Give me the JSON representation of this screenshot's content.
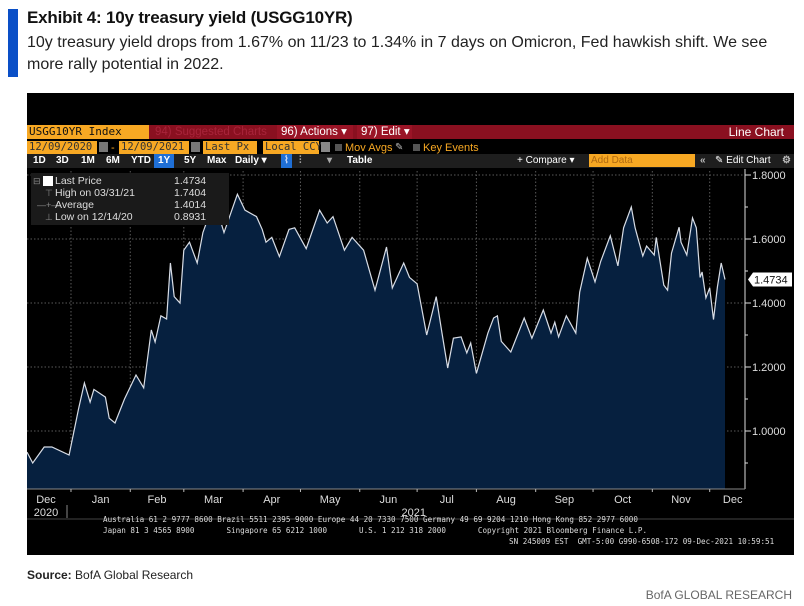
{
  "header": {
    "title": "Exhibit 4: 10y treasury yield (USGG10YR)",
    "subtitle": "10y treasury yield drops from 1.67% on 11/23 to 1.34% in 7 days on Omicron, Fed hawkish shift. We see more rally potential in 2022."
  },
  "terminal": {
    "toolbar1": {
      "ticker": "USGG10YR Index",
      "suggested": "94) Suggested Charts",
      "actions": "96) Actions ▾",
      "edit": "97) Edit ▾",
      "chart_type": "Line Chart"
    },
    "toolbar2": {
      "start_date": "12/09/2020",
      "separator": "-",
      "end_date": "12/09/2021",
      "field": "Last Px",
      "currency": "Local CCY",
      "mov_avgs": "Mov Avgs",
      "key_events": "Key Events"
    },
    "toolbar3": {
      "periods": [
        "1D",
        "3D",
        "1M",
        "6M",
        "YTD",
        "1Y",
        "5Y",
        "Max"
      ],
      "active_period": "1Y",
      "frequency": "Daily ▾",
      "table": "Table",
      "compare": "+ Compare ▾",
      "add_data_placeholder": "Add Data",
      "collapse": "«",
      "edit_chart": "✎ Edit Chart",
      "settings_icon": "⚙"
    },
    "legend": [
      {
        "name": "Last Price",
        "value": "1.4734",
        "symbol": "swatch"
      },
      {
        "name": "High on 03/31/21",
        "value": "1.7404",
        "symbol": "⊤"
      },
      {
        "name": "Average",
        "value": "1.4014",
        "symbol": "—+—"
      },
      {
        "name": "Low on 12/14/20",
        "value": "0.8931",
        "symbol": "⊥"
      }
    ],
    "footer": {
      "line1": "Australia 61 2 9777 8600 Brazil 5511 2395 9000 Europe 44 20 7330 7500 Germany 49 69 9204 1210 Hong Kong 852 2977 6000",
      "line2": "Japan 81 3 4565 8900       Singapore 65 6212 1000       U.S. 1 212 318 2000       Copyright 2021 Bloomberg Finance L.P.",
      "line3": "SN 245009 EST  GMT-5:00 G990-6508-172 09-Dec-2021 10:59:51"
    },
    "colors": {
      "area_fill": "#06203f",
      "line": "#d8dde6",
      "toolbar_red": "#8a1020",
      "toolbar_orange": "#f7a823",
      "active_blue": "#1f6fd6"
    }
  },
  "chart_data": {
    "type": "area",
    "title": "USGG10YR Index",
    "xlabel": "",
    "ylabel": "",
    "ylim": [
      0.8,
      1.85
    ],
    "yticks": [
      1.0,
      1.2,
      1.4,
      1.6,
      1.8
    ],
    "ytick_labels": [
      "1.0000",
      "1.2000",
      "1.4000",
      "1.6000",
      "1.8000"
    ],
    "x_start": "2020-12-09",
    "x_end": "2021-12-09",
    "x_months": [
      {
        "label": "Dec",
        "day": 0,
        "year": "2020"
      },
      {
        "label": "Jan",
        "day": 23
      },
      {
        "label": "Feb",
        "day": 54
      },
      {
        "label": "Mar",
        "day": 82
      },
      {
        "label": "Apr",
        "day": 113
      },
      {
        "label": "May",
        "day": 143
      },
      {
        "label": "Jun",
        "day": 174,
        "year": "2021"
      },
      {
        "label": "Jul",
        "day": 204
      },
      {
        "label": "Aug",
        "day": 235
      },
      {
        "label": "Sep",
        "day": 266
      },
      {
        "label": "Oct",
        "day": 296
      },
      {
        "label": "Nov",
        "day": 327
      },
      {
        "label": "Dec",
        "day": 357
      }
    ],
    "last_value_label": "1.4734",
    "grid": true,
    "legend_position": "top-left",
    "series": [
      {
        "name": "Last Price",
        "points": [
          [
            0,
            0.934
          ],
          [
            3,
            0.9
          ],
          [
            9,
            0.95
          ],
          [
            13,
            0.95
          ],
          [
            22,
            0.925
          ],
          [
            27,
            1.07
          ],
          [
            30,
            1.15
          ],
          [
            33,
            1.09
          ],
          [
            35,
            1.13
          ],
          [
            41,
            1.106
          ],
          [
            43,
            1.04
          ],
          [
            46,
            1.025
          ],
          [
            51,
            1.1
          ],
          [
            57,
            1.175
          ],
          [
            61,
            1.135
          ],
          [
            65,
            1.316
          ],
          [
            67,
            1.278
          ],
          [
            70,
            1.36
          ],
          [
            73,
            1.35
          ],
          [
            75,
            1.525
          ],
          [
            77,
            1.42
          ],
          [
            80,
            1.4
          ],
          [
            82,
            1.565
          ],
          [
            85,
            1.59
          ],
          [
            89,
            1.525
          ],
          [
            92,
            1.62
          ],
          [
            98,
            1.72
          ],
          [
            103,
            1.62
          ],
          [
            110,
            1.74
          ],
          [
            114,
            1.69
          ],
          [
            120,
            1.67
          ],
          [
            123,
            1.63
          ],
          [
            125,
            1.59
          ],
          [
            128,
            1.605
          ],
          [
            132,
            1.545
          ],
          [
            137,
            1.63
          ],
          [
            140,
            1.635
          ],
          [
            146,
            1.57
          ],
          [
            153,
            1.69
          ],
          [
            157,
            1.65
          ],
          [
            160,
            1.67
          ],
          [
            166,
            1.565
          ],
          [
            170,
            1.605
          ],
          [
            176,
            1.565
          ],
          [
            182,
            1.44
          ],
          [
            188,
            1.575
          ],
          [
            191,
            1.447
          ],
          [
            197,
            1.525
          ],
          [
            200,
            1.48
          ],
          [
            204,
            1.46
          ],
          [
            209,
            1.3
          ],
          [
            214,
            1.42
          ],
          [
            217,
            1.306
          ],
          [
            220,
            1.197
          ],
          [
            223,
            1.29
          ],
          [
            227,
            1.294
          ],
          [
            230,
            1.244
          ],
          [
            232,
            1.275
          ],
          [
            235,
            1.18
          ],
          [
            241,
            1.306
          ],
          [
            244,
            1.353
          ],
          [
            246,
            1.36
          ],
          [
            248,
            1.28
          ],
          [
            253,
            1.247
          ],
          [
            260,
            1.353
          ],
          [
            264,
            1.29
          ],
          [
            270,
            1.378
          ],
          [
            274,
            1.306
          ],
          [
            276,
            1.34
          ],
          [
            278,
            1.294
          ],
          [
            282,
            1.36
          ],
          [
            287,
            1.306
          ],
          [
            289,
            1.434
          ],
          [
            293,
            1.54
          ],
          [
            297,
            1.466
          ],
          [
            300,
            1.53
          ],
          [
            305,
            1.61
          ],
          [
            309,
            1.516
          ],
          [
            312,
            1.635
          ],
          [
            316,
            1.7
          ],
          [
            318,
            1.635
          ],
          [
            322,
            1.547
          ],
          [
            324,
            1.578
          ],
          [
            328,
            1.55
          ],
          [
            329,
            1.605
          ],
          [
            333,
            1.456
          ],
          [
            335,
            1.44
          ],
          [
            337,
            1.556
          ],
          [
            341,
            1.637
          ],
          [
            342,
            1.59
          ],
          [
            345,
            1.55
          ],
          [
            348,
            1.666
          ],
          [
            350,
            1.635
          ],
          [
            352,
            1.48
          ],
          [
            353,
            1.497
          ],
          [
            355,
            1.416
          ],
          [
            357,
            1.447
          ],
          [
            359,
            1.348
          ],
          [
            361,
            1.45
          ],
          [
            363,
            1.525
          ],
          [
            365,
            1.4734
          ]
        ]
      }
    ]
  },
  "source": {
    "label": "Source:",
    "text": "BofA Global Research"
  },
  "brand": "BofA GLOBAL RESEARCH"
}
